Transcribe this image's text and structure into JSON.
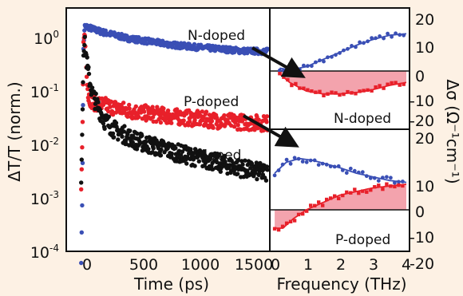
{
  "colors": {
    "n_doped": "#3a4fb5",
    "p_doped": "#e8202a",
    "undoped": "#111111",
    "fill": "#f3a3ad",
    "background": "#fdf1e4"
  },
  "chart_data": [
    {
      "type": "scatter",
      "xlabel": "Time (ps)",
      "ylabel": "ΔT/T (norm.)",
      "xlim": [
        -130,
        1640
      ],
      "ylim_log10": [
        -4,
        0.33
      ],
      "y_scale": "log",
      "xticks": [
        "0",
        "500",
        "1000",
        "1500"
      ],
      "yticks": [
        {
          "base": "10",
          "exp": "0"
        },
        {
          "base": "10",
          "exp": "-1"
        },
        {
          "base": "10",
          "exp": "-2"
        },
        {
          "base": "10",
          "exp": "-3"
        },
        {
          "base": "10",
          "exp": "-4"
        }
      ],
      "annotations": [
        "N-doped",
        "P-doped",
        "Undoped"
      ],
      "series": [
        {
          "key": "n_doped",
          "points": [
            [
              0,
              6.5e-05
            ],
            [
              10,
              0.0012
            ],
            [
              20,
              0.4
            ],
            [
              30,
              1.0
            ],
            [
              60,
              0.98
            ],
            [
              100,
              0.9
            ],
            [
              200,
              0.78
            ],
            [
              300,
              0.7
            ],
            [
              400,
              0.62
            ],
            [
              600,
              0.54
            ],
            [
              800,
              0.47
            ],
            [
              1000,
              0.43
            ],
            [
              1200,
              0.4
            ],
            [
              1400,
              0.37
            ],
            [
              1600,
              0.36
            ]
          ]
        },
        {
          "key": "p_doped",
          "points": [
            [
              0,
              0.0012
            ],
            [
              10,
              0.01
            ],
            [
              20,
              0.5
            ],
            [
              30,
              0.8
            ],
            [
              60,
              0.06
            ],
            [
              100,
              0.045
            ],
            [
              200,
              0.04
            ],
            [
              400,
              0.032
            ],
            [
              600,
              0.028
            ],
            [
              800,
              0.025
            ],
            [
              1000,
              0.023
            ],
            [
              1200,
              0.021
            ],
            [
              1400,
              0.02
            ],
            [
              1600,
              0.019
            ]
          ]
        },
        {
          "key": "undoped",
          "points": [
            [
              0,
              0.0018
            ],
            [
              10,
              0.02
            ],
            [
              20,
              0.35
            ],
            [
              30,
              0.5
            ],
            [
              60,
              0.15
            ],
            [
              100,
              0.06
            ],
            [
              200,
              0.022
            ],
            [
              300,
              0.014
            ],
            [
              500,
              0.009
            ],
            [
              700,
              0.0068
            ],
            [
              900,
              0.0052
            ],
            [
              1100,
              0.0042
            ],
            [
              1300,
              0.0033
            ],
            [
              1500,
              0.0027
            ],
            [
              1600,
              0.0025
            ]
          ]
        }
      ]
    },
    {
      "type": "line",
      "xlabel": "Frequency (THz)",
      "ylabel": "Δσ (Ω⁻¹cm⁻¹)",
      "xlim": [
        0,
        4
      ],
      "xticks": [
        "0",
        "1",
        "2",
        "3",
        "4"
      ],
      "panels": [
        {
          "label": "N-doped",
          "ylim": [
            -22,
            22
          ],
          "yticks": [
            "20",
            "10",
            "0",
            "-10",
            "-20"
          ],
          "real_points": [
            [
              0.2,
              1
            ],
            [
              0.5,
              0.4
            ],
            [
              1.0,
              1.5
            ],
            [
              1.5,
              4
            ],
            [
              2.0,
              6.5
            ],
            [
              2.5,
              9
            ],
            [
              3.0,
              11
            ],
            [
              3.5,
              12.5
            ],
            [
              4.0,
              13
            ]
          ],
          "imag_points": [
            [
              0.2,
              -1
            ],
            [
              0.5,
              -4
            ],
            [
              1.0,
              -7
            ],
            [
              1.5,
              -8
            ],
            [
              2.0,
              -8
            ],
            [
              2.5,
              -7.5
            ],
            [
              3.0,
              -6.5
            ],
            [
              3.5,
              -5
            ],
            [
              4.0,
              -4
            ]
          ]
        },
        {
          "label": "P-doped",
          "ylim": [
            -22,
            22
          ],
          "yticks": [
            "20",
            "10",
            "0",
            "-10",
            "-20"
          ],
          "real_points": [
            [
              0.05,
              10
            ],
            [
              0.4,
              13
            ],
            [
              0.8,
              14
            ],
            [
              1.2,
              13.5
            ],
            [
              1.6,
              12.5
            ],
            [
              2.0,
              11.5
            ],
            [
              2.5,
              10
            ],
            [
              3.0,
              9
            ],
            [
              3.5,
              8
            ],
            [
              4.0,
              7.5
            ]
          ],
          "imag_points": [
            [
              0.05,
              -5
            ],
            [
              0.3,
              -5
            ],
            [
              0.6,
              -2.5
            ],
            [
              1.0,
              0
            ],
            [
              1.5,
              2
            ],
            [
              2.0,
              4
            ],
            [
              2.5,
              5
            ],
            [
              3.0,
              6
            ],
            [
              3.5,
              6.5
            ],
            [
              4.0,
              7
            ]
          ]
        }
      ]
    }
  ]
}
